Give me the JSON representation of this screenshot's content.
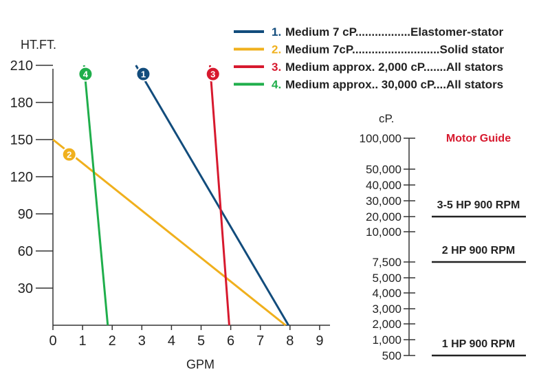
{
  "chart_data": {
    "type": "line",
    "xlabel": "GPM",
    "ylabel": "HT.FT.",
    "xlim": [
      0,
      9
    ],
    "ylim": [
      0,
      210
    ],
    "x_ticks": [
      "0",
      "1",
      "2",
      "3",
      "4",
      "5",
      "6",
      "7",
      "8",
      "9"
    ],
    "y_ticks": [
      "30",
      "60",
      "90",
      "120",
      "150",
      "180",
      "210"
    ],
    "grid": false,
    "legend_position": "top-right",
    "series": [
      {
        "id": "1",
        "num": "1.",
        "text": "Medium 7 cP.................Elastomer-stator",
        "marker": "1",
        "color": "#124c7c",
        "points": [
          [
            2.8,
            210
          ],
          [
            7.95,
            0
          ]
        ],
        "marker_at": [
          3.05,
          203
        ]
      },
      {
        "id": "2",
        "num": "2.",
        "text": "Medium 7cP...........................Solid stator",
        "marker": "2",
        "color": "#f0b01d",
        "points": [
          [
            0,
            150
          ],
          [
            7.85,
            0
          ]
        ],
        "marker_at": [
          0.55,
          138
        ]
      },
      {
        "id": "3",
        "num": "3.",
        "text": "Medium approx. 2,000 cP.......All stators",
        "marker": "3",
        "color": "#d7192e",
        "points": [
          [
            5.3,
            210
          ],
          [
            5.95,
            0
          ]
        ],
        "marker_at": [
          5.4,
          203
        ]
      },
      {
        "id": "4",
        "num": "4.",
        "text": "Medium approx.. 30,000 cP....All stators",
        "marker": "4",
        "color": "#1fae4b",
        "points": [
          [
            1.05,
            210
          ],
          [
            1.85,
            0
          ]
        ],
        "marker_at": [
          1.1,
          203
        ]
      }
    ]
  },
  "motor_guide": {
    "unit_label": "cP.",
    "title": "Motor Guide",
    "viscosity_ticks": [
      "100,000",
      "50,000",
      "40,000",
      "30,000",
      "20,000",
      "10,000",
      "7,500",
      "5,000",
      "4,000",
      "3,000",
      "2,000",
      "1,000",
      "500"
    ],
    "ranges": [
      {
        "label": "3-5 HP 900 RPM",
        "boundary": "20,000"
      },
      {
        "label": "2 HP 900 RPM",
        "boundary": "7,500"
      },
      {
        "label": "1 HP 900 RPM",
        "boundary": "500"
      }
    ]
  }
}
